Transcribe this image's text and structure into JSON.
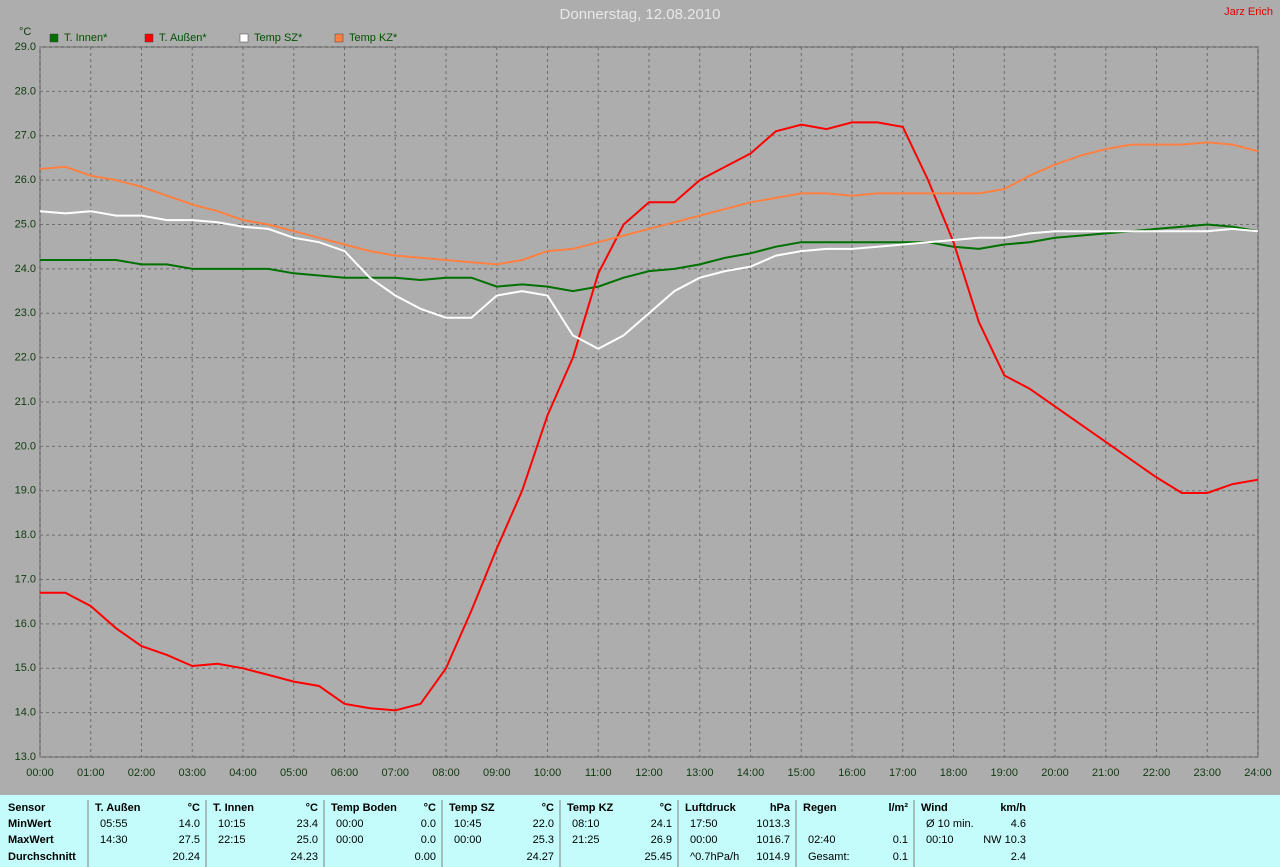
{
  "chart_data": {
    "type": "line",
    "title": "Donnerstag, 12.08.2010",
    "author": "Jarz Erich",
    "y_label": "°C",
    "x": [
      0,
      0.5,
      1,
      1.5,
      2,
      2.5,
      3,
      3.5,
      4,
      4.5,
      5,
      5.5,
      6,
      6.5,
      7,
      7.5,
      8,
      8.5,
      9,
      9.5,
      10,
      10.5,
      11,
      11.5,
      12,
      12.5,
      13,
      13.5,
      14,
      14.5,
      15,
      15.5,
      16,
      16.5,
      17,
      17.5,
      18,
      18.5,
      19,
      19.5,
      20,
      20.5,
      21,
      21.5,
      22,
      22.5,
      23,
      23.5,
      24
    ],
    "xlim": [
      0,
      24
    ],
    "xticks": [
      {
        "value": 0,
        "label": "00:00"
      },
      {
        "value": 1,
        "label": "01:00"
      },
      {
        "value": 2,
        "label": "02:00"
      },
      {
        "value": 3,
        "label": "03:00"
      },
      {
        "value": 4,
        "label": "04:00"
      },
      {
        "value": 5,
        "label": "05:00"
      },
      {
        "value": 6,
        "label": "06:00"
      },
      {
        "value": 7,
        "label": "07:00"
      },
      {
        "value": 8,
        "label": "08:00"
      },
      {
        "value": 9,
        "label": "09:00"
      },
      {
        "value": 10,
        "label": "10:00"
      },
      {
        "value": 11,
        "label": "11:00"
      },
      {
        "value": 12,
        "label": "12:00"
      },
      {
        "value": 13,
        "label": "13:00"
      },
      {
        "value": 14,
        "label": "14:00"
      },
      {
        "value": 15,
        "label": "15:00"
      },
      {
        "value": 16,
        "label": "16:00"
      },
      {
        "value": 17,
        "label": "17:00"
      },
      {
        "value": 18,
        "label": "18:00"
      },
      {
        "value": 19,
        "label": "19:00"
      },
      {
        "value": 20,
        "label": "20:00"
      },
      {
        "value": 21,
        "label": "21:00"
      },
      {
        "value": 22,
        "label": "22:00"
      },
      {
        "value": 23,
        "label": "23:00"
      },
      {
        "value": 24,
        "label": "24:00"
      }
    ],
    "ylim": [
      13,
      29
    ],
    "yticks": [
      {
        "value": 13,
        "label": "13.0"
      },
      {
        "value": 14,
        "label": "14.0"
      },
      {
        "value": 15,
        "label": "15.0"
      },
      {
        "value": 16,
        "label": "16.0"
      },
      {
        "value": 17,
        "label": "17.0"
      },
      {
        "value": 18,
        "label": "18.0"
      },
      {
        "value": 19,
        "label": "19.0"
      },
      {
        "value": 20,
        "label": "20.0"
      },
      {
        "value": 21,
        "label": "21.0"
      },
      {
        "value": 22,
        "label": "22.0"
      },
      {
        "value": 23,
        "label": "23.0"
      },
      {
        "value": 24,
        "label": "24.0"
      },
      {
        "value": 25,
        "label": "25.0"
      },
      {
        "value": 26,
        "label": "26.0"
      },
      {
        "value": 27,
        "label": "27.0"
      },
      {
        "value": 28,
        "label": "28.0"
      },
      {
        "value": 29,
        "label": "29.0"
      }
    ],
    "grid": true,
    "series": [
      {
        "name": "T. Innen*",
        "color": "#007000",
        "values": [
          24.2,
          24.2,
          24.2,
          24.2,
          24.1,
          24.1,
          24.0,
          24.0,
          24.0,
          24.0,
          23.9,
          23.85,
          23.8,
          23.8,
          23.8,
          23.75,
          23.8,
          23.8,
          23.6,
          23.65,
          23.6,
          23.5,
          23.6,
          23.8,
          23.95,
          24.0,
          24.1,
          24.25,
          24.35,
          24.5,
          24.6,
          24.6,
          24.6,
          24.6,
          24.6,
          24.6,
          24.5,
          24.45,
          24.55,
          24.6,
          24.7,
          24.75,
          24.8,
          24.85,
          24.9,
          24.95,
          25.0,
          24.95,
          24.85
        ]
      },
      {
        "name": "T. Außen*",
        "color": "#ff0000",
        "values": [
          16.7,
          16.7,
          16.4,
          15.9,
          15.5,
          15.3,
          15.05,
          15.1,
          15.0,
          14.85,
          14.7,
          14.6,
          14.2,
          14.1,
          14.05,
          14.2,
          15.0,
          16.3,
          17.7,
          19.0,
          20.7,
          22.0,
          23.9,
          25.0,
          25.5,
          25.5,
          26.0,
          26.3,
          26.6,
          27.1,
          27.25,
          27.15,
          27.3,
          27.3,
          27.2,
          26.0,
          24.6,
          22.8,
          21.6,
          21.3,
          20.9,
          20.5,
          20.1,
          19.7,
          19.3,
          18.95,
          18.95,
          19.15,
          19.25
        ]
      },
      {
        "name": "Temp SZ*",
        "color": "#ffffff",
        "values": [
          25.3,
          25.25,
          25.3,
          25.2,
          25.2,
          25.1,
          25.1,
          25.05,
          24.95,
          24.9,
          24.7,
          24.6,
          24.4,
          23.8,
          23.4,
          23.1,
          22.9,
          22.9,
          23.4,
          23.5,
          23.4,
          22.5,
          22.2,
          22.5,
          23.0,
          23.5,
          23.8,
          23.95,
          24.05,
          24.3,
          24.4,
          24.45,
          24.45,
          24.5,
          24.55,
          24.6,
          24.65,
          24.7,
          24.7,
          24.8,
          24.85,
          24.85,
          24.85,
          24.85,
          24.85,
          24.85,
          24.85,
          24.9,
          24.85
        ]
      },
      {
        "name": "Temp KZ*",
        "color": "#ff8040",
        "values": [
          26.25,
          26.3,
          26.1,
          26.0,
          25.85,
          25.65,
          25.45,
          25.3,
          25.1,
          25.0,
          24.85,
          24.7,
          24.55,
          24.4,
          24.3,
          24.25,
          24.2,
          24.15,
          24.1,
          24.2,
          24.4,
          24.45,
          24.6,
          24.75,
          24.9,
          25.05,
          25.2,
          25.35,
          25.5,
          25.6,
          25.7,
          25.7,
          25.65,
          25.7,
          25.7,
          25.7,
          25.7,
          25.7,
          25.8,
          26.1,
          26.35,
          26.55,
          26.7,
          26.8,
          26.8,
          26.8,
          26.85,
          26.8,
          26.65
        ]
      }
    ]
  },
  "table": {
    "header": "Sensor",
    "row_labels": [
      "MinWert",
      "MaxWert",
      "Durchschnitt"
    ],
    "groups": [
      {
        "name": "T. Außen",
        "unit": "°C",
        "rows": [
          {
            "time": "05:55",
            "value": "14.0"
          },
          {
            "time": "14:30",
            "value": "27.5"
          },
          {
            "value": "20.24"
          }
        ]
      },
      {
        "name": "T. Innen",
        "unit": "°C",
        "rows": [
          {
            "time": "10:15",
            "value": "23.4"
          },
          {
            "time": "22:15",
            "value": "25.0"
          },
          {
            "value": "24.23"
          }
        ]
      },
      {
        "name": "Temp Boden",
        "unit": "°C",
        "rows": [
          {
            "time": "00:00",
            "value": "0.0"
          },
          {
            "time": "00:00",
            "value": "0.0"
          },
          {
            "value": "0.00"
          }
        ]
      },
      {
        "name": "Temp SZ",
        "unit": "°C",
        "rows": [
          {
            "time": "10:45",
            "value": "22.0"
          },
          {
            "time": "00:00",
            "value": "25.3"
          },
          {
            "value": "24.27"
          }
        ]
      },
      {
        "name": "Temp KZ",
        "unit": "°C",
        "rows": [
          {
            "time": "08:10",
            "value": "24.1"
          },
          {
            "time": "21:25",
            "value": "26.9"
          },
          {
            "value": "25.45"
          }
        ]
      },
      {
        "name": "Luftdruck",
        "unit": "hPa",
        "rows": [
          {
            "time": "17:50",
            "value": "1013.3"
          },
          {
            "time": "00:00",
            "value": "1016.7"
          },
          {
            "time": "^0.7hPa/h",
            "value": "1014.9"
          }
        ]
      },
      {
        "name": "Regen",
        "unit": "l/m²",
        "rows": [
          {},
          {
            "time": "02:40",
            "value": "0.1"
          },
          {
            "time": "Gesamt:",
            "value": "0.1"
          }
        ]
      },
      {
        "name": "Wind",
        "unit": "km/h",
        "rows": [
          {
            "time": "Ø 10 min.",
            "value": "4.6"
          },
          {
            "time": "00:10",
            "value": "NW 10.3"
          },
          {
            "value": "2.4"
          }
        ]
      }
    ]
  }
}
